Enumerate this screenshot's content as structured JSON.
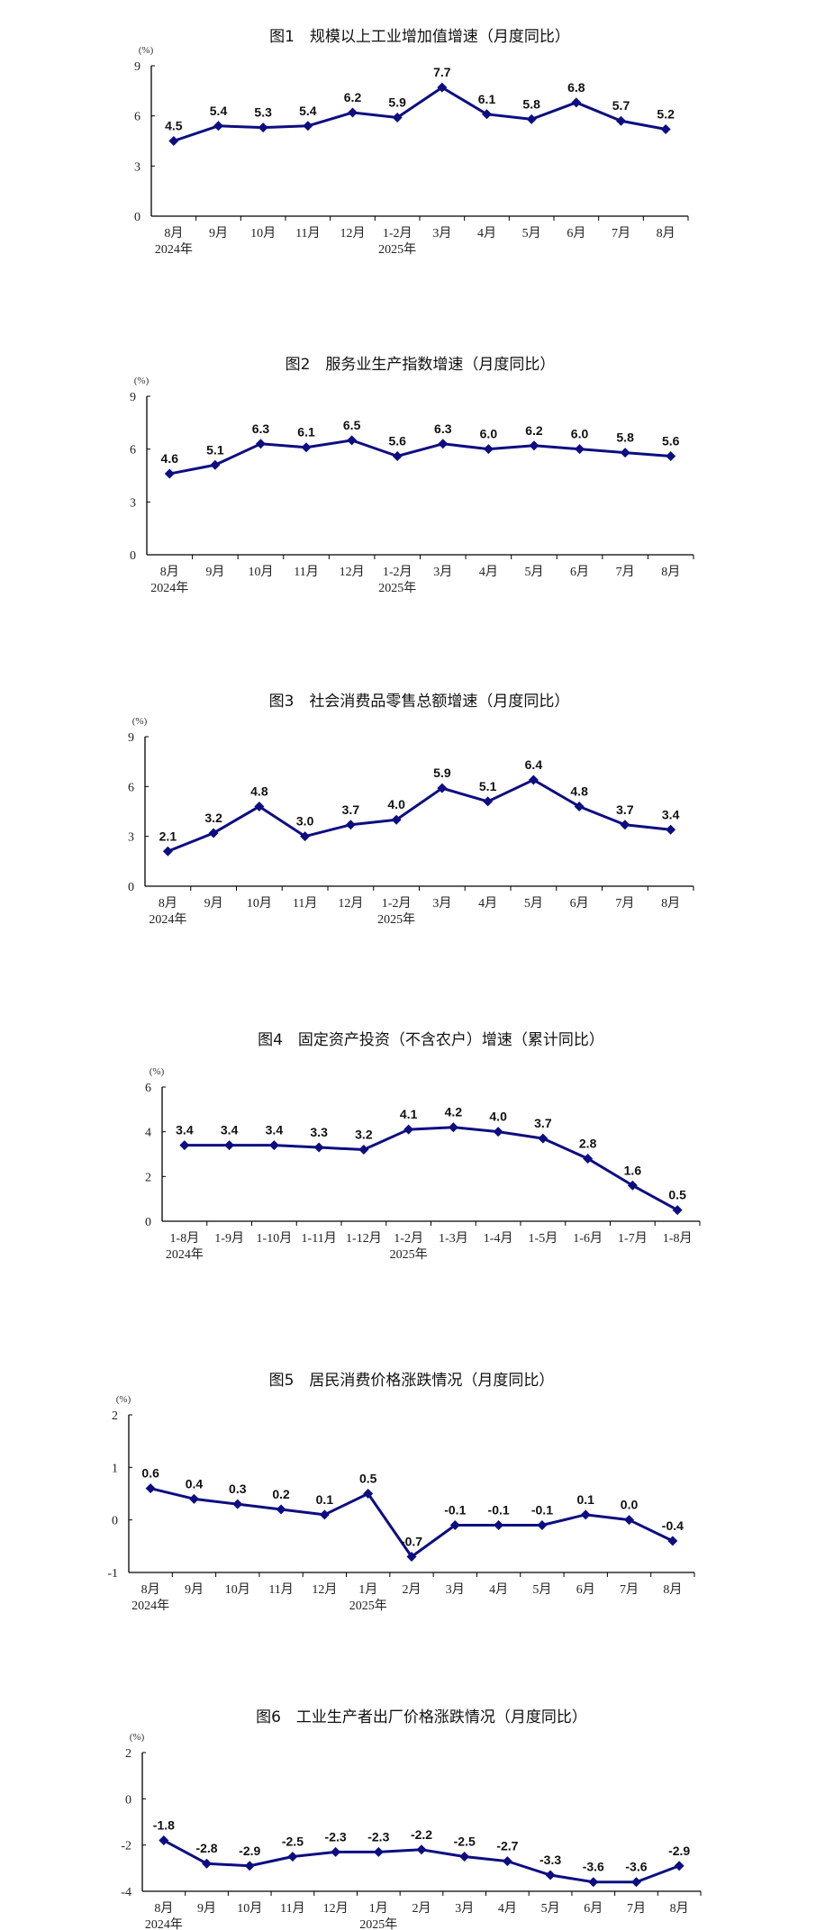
{
  "line_color": "#0d0d82",
  "chart_data": [
    {
      "type": "line",
      "title": "图1　规模以上工业增加值增速（月度同比）",
      "ylabel": "(%)",
      "ylim": [
        0,
        9
      ],
      "yticks": [
        0,
        3,
        6,
        9
      ],
      "categories": [
        "8月",
        "9月",
        "10月",
        "11月",
        "12月",
        "1-2月",
        "3月",
        "4月",
        "5月",
        "6月",
        "7月",
        "8月"
      ],
      "year_labels": [
        {
          "index": 0,
          "text": "2024年"
        },
        {
          "index": 5,
          "text": "2025年"
        }
      ],
      "values": [
        4.5,
        5.4,
        5.3,
        5.4,
        6.2,
        5.9,
        7.7,
        6.1,
        5.8,
        6.8,
        5.7,
        5.2
      ],
      "value_labels": [
        "4.5",
        "5.4",
        "5.3",
        "5.4",
        "6.2",
        "5.9",
        "7.7",
        "6.1",
        "5.8",
        "6.8",
        "5.7",
        "5.2"
      ],
      "grid": false,
      "legend": "none"
    },
    {
      "type": "line",
      "title": "图2　服务业生产指数增速（月度同比）",
      "ylabel": "(%)",
      "ylim": [
        0,
        9
      ],
      "yticks": [
        0,
        3,
        6,
        9
      ],
      "categories": [
        "8月",
        "9月",
        "10月",
        "11月",
        "12月",
        "1-2月",
        "3月",
        "4月",
        "5月",
        "6月",
        "7月",
        "8月"
      ],
      "year_labels": [
        {
          "index": 0,
          "text": "2024年"
        },
        {
          "index": 5,
          "text": "2025年"
        }
      ],
      "values": [
        4.6,
        5.1,
        6.3,
        6.1,
        6.5,
        5.6,
        6.3,
        6.0,
        6.2,
        6.0,
        5.8,
        5.6
      ],
      "value_labels": [
        "4.6",
        "5.1",
        "6.3",
        "6.1",
        "6.5",
        "5.6",
        "6.3",
        "6.0",
        "6.2",
        "6.0",
        "5.8",
        "5.6"
      ],
      "grid": false,
      "legend": "none"
    },
    {
      "type": "line",
      "title": "图3　社会消费品零售总额增速（月度同比）",
      "ylabel": "(%)",
      "ylim": [
        0,
        9
      ],
      "yticks": [
        0,
        3,
        6,
        9
      ],
      "categories": [
        "8月",
        "9月",
        "10月",
        "11月",
        "12月",
        "1-2月",
        "3月",
        "4月",
        "5月",
        "6月",
        "7月",
        "8月"
      ],
      "year_labels": [
        {
          "index": 0,
          "text": "2024年"
        },
        {
          "index": 5,
          "text": "2025年"
        }
      ],
      "values": [
        2.1,
        3.2,
        4.8,
        3.0,
        3.7,
        4.0,
        5.9,
        5.1,
        6.4,
        4.8,
        3.7,
        3.4
      ],
      "value_labels": [
        "2.1",
        "3.2",
        "4.8",
        "3.0",
        "3.7",
        "4.0",
        "5.9",
        "5.1",
        "6.4",
        "4.8",
        "3.7",
        "3.4"
      ],
      "grid": false,
      "legend": "none"
    },
    {
      "type": "line",
      "title": "图4　固定资产投资（不含农户）增速（累计同比）",
      "ylabel": "(%)",
      "ylim": [
        0,
        6
      ],
      "yticks": [
        0,
        2,
        4,
        6
      ],
      "categories": [
        "1-8月",
        "1-9月",
        "1-10月",
        "1-11月",
        "1-12月",
        "1-2月",
        "1-3月",
        "1-4月",
        "1-5月",
        "1-6月",
        "1-7月",
        "1-8月"
      ],
      "year_labels": [
        {
          "index": 0,
          "text": "2024年"
        },
        {
          "index": 5,
          "text": "2025年"
        }
      ],
      "values": [
        3.4,
        3.4,
        3.4,
        3.3,
        3.2,
        4.1,
        4.2,
        4.0,
        3.7,
        2.8,
        1.6,
        0.5
      ],
      "value_labels": [
        "3.4",
        "3.4",
        "3.4",
        "3.3",
        "3.2",
        "4.1",
        "4.2",
        "4.0",
        "3.7",
        "2.8",
        "1.6",
        "0.5"
      ],
      "grid": false,
      "legend": "none"
    },
    {
      "type": "line",
      "title": "图5　居民消费价格涨跌情况（月度同比）",
      "ylabel": "(%)",
      "ylim": [
        -1,
        2
      ],
      "yticks": [
        -1,
        0,
        1,
        2
      ],
      "categories": [
        "8月",
        "9月",
        "10月",
        "11月",
        "12月",
        "1月",
        "2月",
        "3月",
        "4月",
        "5月",
        "6月",
        "7月",
        "8月"
      ],
      "year_labels": [
        {
          "index": 0,
          "text": "2024年"
        },
        {
          "index": 5,
          "text": "2025年"
        }
      ],
      "values": [
        0.6,
        0.4,
        0.3,
        0.2,
        0.1,
        0.5,
        -0.7,
        -0.1,
        -0.1,
        -0.1,
        0.1,
        0.0,
        -0.4
      ],
      "value_labels": [
        "0.6",
        "0.4",
        "0.3",
        "0.2",
        "0.1",
        "0.5",
        "-0.7",
        "-0.1",
        "-0.1",
        "-0.1",
        "0.1",
        "0.0",
        "-0.4"
      ],
      "grid": false,
      "legend": "none"
    },
    {
      "type": "line",
      "title": "图6　工业生产者出厂价格涨跌情况（月度同比）",
      "ylabel": "(%)",
      "ylim": [
        -4,
        2
      ],
      "yticks": [
        -4,
        -2,
        0,
        2
      ],
      "categories": [
        "8月",
        "9月",
        "10月",
        "11月",
        "12月",
        "1月",
        "2月",
        "3月",
        "4月",
        "5月",
        "6月",
        "7月",
        "8月"
      ],
      "year_labels": [
        {
          "index": 0,
          "text": "2024年"
        },
        {
          "index": 5,
          "text": "2025年"
        }
      ],
      "values": [
        -1.8,
        -2.8,
        -2.9,
        -2.5,
        -2.3,
        -2.3,
        -2.2,
        -2.5,
        -2.7,
        -3.3,
        -3.6,
        -3.6,
        -2.9
      ],
      "value_labels": [
        "-1.8",
        "-2.8",
        "-2.9",
        "-2.5",
        "-2.3",
        "-2.3",
        "-2.2",
        "-2.5",
        "-2.7",
        "-3.3",
        "-3.6",
        "-3.6",
        "-2.9"
      ],
      "grid": false,
      "legend": "none"
    }
  ]
}
